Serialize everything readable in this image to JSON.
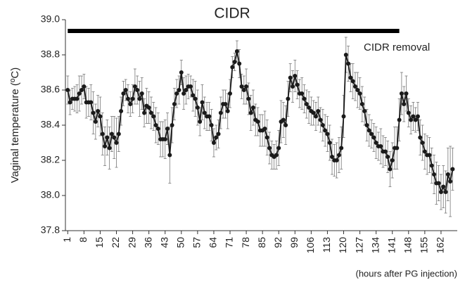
{
  "chart_data": {
    "type": "line",
    "title": "CIDR",
    "annotation": "CIDR removal",
    "ylabel": "Vaginal temperature (ºC)",
    "xlabel": "(hours after PG injection)",
    "cidr_period": [
      1,
      144
    ],
    "xlim": [
      0,
      169
    ],
    "xticks": [
      1,
      8,
      15,
      22,
      29,
      36,
      43,
      50,
      57,
      64,
      71,
      78,
      85,
      92,
      99,
      106,
      113,
      120,
      127,
      134,
      141,
      148,
      155,
      162
    ],
    "ylim": [
      37.8,
      39.0
    ],
    "yticks": [
      {
        "value": 37.8,
        "label": "37.8"
      },
      {
        "value": 38.0,
        "label": "38.0"
      },
      {
        "value": 38.2,
        "label": "38.2"
      },
      {
        "value": 38.4,
        "label": "38.4"
      },
      {
        "value": 38.6,
        "label": "38.6"
      },
      {
        "value": 38.8,
        "label": "38.8"
      },
      {
        "value": 39.0,
        "label": "39.0"
      }
    ],
    "grid": false,
    "color": "#1a1a1a",
    "x": [
      1,
      2,
      3,
      4,
      5,
      6,
      7,
      8,
      9,
      10,
      11,
      12,
      13,
      14,
      15,
      16,
      17,
      18,
      19,
      20,
      21,
      22,
      23,
      24,
      25,
      26,
      27,
      28,
      29,
      30,
      31,
      32,
      33,
      34,
      35,
      36,
      37,
      38,
      39,
      40,
      41,
      42,
      43,
      44,
      45,
      46,
      47,
      48,
      49,
      50,
      51,
      52,
      53,
      54,
      55,
      56,
      57,
      58,
      59,
      60,
      61,
      62,
      63,
      64,
      65,
      66,
      67,
      68,
      69,
      70,
      71,
      72,
      73,
      74,
      75,
      76,
      77,
      78,
      79,
      80,
      81,
      82,
      83,
      84,
      85,
      86,
      87,
      88,
      89,
      90,
      91,
      92,
      93,
      94,
      95,
      96,
      97,
      98,
      99,
      100,
      101,
      102,
      103,
      104,
      105,
      106,
      107,
      108,
      109,
      110,
      111,
      112,
      113,
      114,
      115,
      116,
      117,
      118,
      119,
      120,
      121,
      122,
      123,
      124,
      125,
      126,
      127,
      128,
      129,
      130,
      131,
      132,
      133,
      134,
      135,
      136,
      137,
      138,
      139,
      140,
      141,
      142,
      143,
      144,
      145,
      146,
      147,
      148,
      149,
      150,
      151,
      152,
      153,
      154,
      155,
      156,
      157,
      158,
      159,
      160,
      161,
      162,
      163,
      164,
      165,
      166,
      167
    ],
    "values": [
      38.6,
      38.53,
      38.55,
      38.55,
      38.55,
      38.58,
      38.6,
      38.62,
      38.53,
      38.53,
      38.53,
      38.47,
      38.42,
      38.48,
      38.45,
      38.35,
      38.28,
      38.33,
      38.27,
      38.35,
      38.33,
      38.3,
      38.35,
      38.48,
      38.58,
      38.6,
      38.55,
      38.52,
      38.55,
      38.62,
      38.6,
      38.55,
      38.58,
      38.47,
      38.51,
      38.5,
      38.47,
      38.45,
      38.4,
      38.38,
      38.32,
      38.32,
      38.32,
      38.38,
      38.23,
      38.4,
      38.52,
      38.58,
      38.6,
      38.7,
      38.58,
      38.6,
      38.62,
      38.62,
      38.57,
      38.55,
      38.5,
      38.42,
      38.53,
      38.47,
      38.45,
      38.45,
      38.4,
      38.3,
      38.33,
      38.35,
      38.47,
      38.52,
      38.52,
      38.48,
      38.58,
      38.73,
      38.76,
      38.82,
      38.75,
      38.62,
      38.6,
      38.62,
      38.55,
      38.47,
      38.5,
      38.43,
      38.42,
      38.37,
      38.37,
      38.38,
      38.33,
      38.27,
      38.23,
      38.22,
      38.23,
      38.27,
      38.42,
      38.43,
      38.4,
      38.55,
      38.67,
      38.62,
      38.68,
      38.63,
      38.58,
      38.58,
      38.55,
      38.52,
      38.5,
      38.48,
      38.47,
      38.45,
      38.48,
      38.43,
      38.4,
      38.37,
      38.35,
      38.3,
      38.22,
      38.2,
      38.2,
      38.23,
      38.27,
      38.45,
      38.8,
      38.75,
      38.67,
      38.65,
      38.62,
      38.6,
      38.58,
      38.52,
      38.48,
      38.4,
      38.37,
      38.35,
      38.33,
      38.3,
      38.28,
      38.28,
      38.25,
      38.25,
      38.22,
      38.15,
      38.2,
      38.27,
      38.27,
      38.43,
      38.58,
      38.52,
      38.58,
      38.47,
      38.43,
      38.45,
      38.43,
      38.45,
      38.33,
      38.3,
      38.25,
      38.23,
      38.23,
      38.17,
      38.12,
      38.07,
      38.07,
      38.02,
      38.05,
      38.02,
      38.12,
      38.08,
      38.15
    ],
    "errors": [
      0.08,
      0.07,
      0.06,
      0.07,
      0.08,
      0.1,
      0.08,
      0.07,
      0.09,
      0.08,
      0.1,
      0.12,
      0.1,
      0.09,
      0.11,
      0.12,
      0.11,
      0.1,
      0.12,
      0.1,
      0.12,
      0.14,
      0.1,
      0.08,
      0.07,
      0.06,
      0.08,
      0.07,
      0.08,
      0.1,
      0.08,
      0.1,
      0.09,
      0.08,
      0.1,
      0.09,
      0.09,
      0.08,
      0.1,
      0.09,
      0.1,
      0.1,
      0.11,
      0.09,
      0.16,
      0.1,
      0.09,
      0.08,
      0.08,
      0.07,
      0.09,
      0.08,
      0.07,
      0.06,
      0.09,
      0.1,
      0.1,
      0.08,
      0.1,
      0.09,
      0.08,
      0.08,
      0.09,
      0.08,
      0.07,
      0.08,
      0.09,
      0.08,
      0.08,
      0.1,
      0.08,
      0.06,
      0.05,
      0.06,
      0.08,
      0.07,
      0.08,
      0.1,
      0.09,
      0.1,
      0.1,
      0.09,
      0.08,
      0.09,
      0.09,
      0.1,
      0.1,
      0.09,
      0.08,
      0.07,
      0.08,
      0.1,
      0.12,
      0.1,
      0.11,
      0.1,
      0.08,
      0.09,
      0.09,
      0.08,
      0.08,
      0.09,
      0.08,
      0.08,
      0.09,
      0.08,
      0.07,
      0.08,
      0.08,
      0.07,
      0.09,
      0.09,
      0.1,
      0.1,
      0.1,
      0.09,
      0.1,
      0.1,
      0.12,
      0.12,
      0.1,
      0.1,
      0.08,
      0.1,
      0.08,
      0.1,
      0.09,
      0.1,
      0.08,
      0.09,
      0.09,
      0.08,
      0.08,
      0.09,
      0.08,
      0.1,
      0.09,
      0.08,
      0.09,
      0.1,
      0.1,
      0.12,
      0.12,
      0.12,
      0.12,
      0.1,
      0.1,
      0.08,
      0.08,
      0.08,
      0.07,
      0.08,
      0.1,
      0.1,
      0.1,
      0.11,
      0.1,
      0.1,
      0.11,
      0.12,
      0.1,
      0.1,
      0.12,
      0.12,
      0.15,
      0.2,
      0.12
    ]
  }
}
